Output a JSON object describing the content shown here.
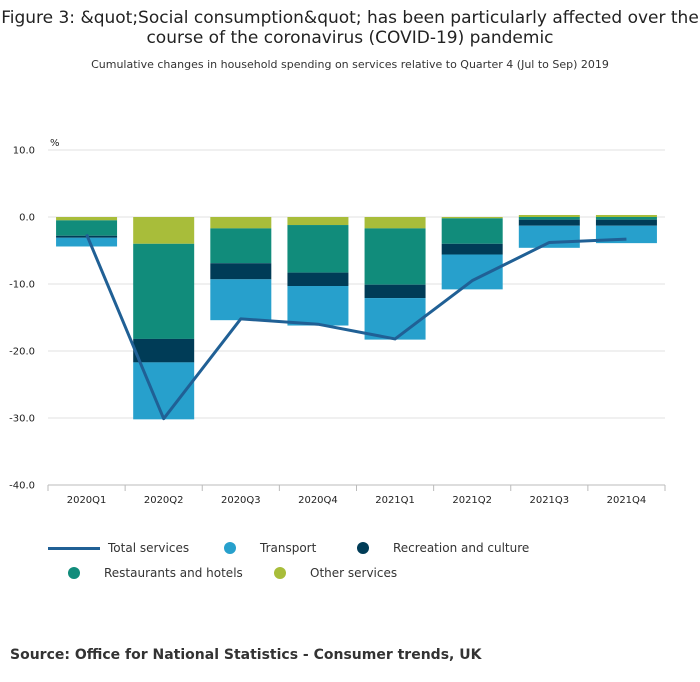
{
  "title": "Figure 3: &quot;Social consumption&quot; has been particularly affected over the course of the coronavirus (COVID-19) pandemic",
  "subtitle": "Cumulative changes in household spending on services relative to Quarter 4 (Jul to Sep) 2019",
  "source": "Source: Office for National Statistics - Consumer trends, UK",
  "colors": {
    "total": "#206095",
    "transport": "#27a0cc",
    "recreation": "#003c57",
    "restaurants": "#118c7b",
    "other": "#a8bd3a"
  },
  "legend": {
    "total": "Total services",
    "transport": "Transport",
    "recreation": "Recreation and culture",
    "restaurants": "Restaurants and hotels",
    "other": "Other services"
  },
  "chart_data": {
    "type": "bar",
    "stacked": true,
    "ylabel": "%",
    "ylim": [
      -40,
      10
    ],
    "yticks": [
      "10.0",
      "0.0",
      "-10.0",
      "-20.0",
      "-30.0",
      "-40.0"
    ],
    "categories": [
      "2020Q1",
      "2020Q2",
      "2020Q3",
      "2020Q4",
      "2021Q1",
      "2021Q2",
      "2021Q3",
      "2021Q4"
    ],
    "series": [
      {
        "name": "Other services",
        "key": "other",
        "values": [
          -0.5,
          -4.0,
          -1.7,
          -1.2,
          -1.7,
          -0.2,
          0.3,
          0.3
        ]
      },
      {
        "name": "Restaurants and hotels",
        "key": "restaurants",
        "values": [
          -2.3,
          -14.2,
          -5.2,
          -7.1,
          -8.4,
          -3.8,
          -0.4,
          -0.4
        ]
      },
      {
        "name": "Recreation and culture",
        "key": "recreation",
        "values": [
          -0.3,
          -3.5,
          -2.4,
          -2.0,
          -2.0,
          -1.6,
          -0.9,
          -0.9
        ]
      },
      {
        "name": "Transport",
        "key": "transport",
        "values": [
          -1.3,
          -8.5,
          -6.1,
          -5.9,
          -6.2,
          -5.2,
          -3.3,
          -2.6
        ]
      },
      {
        "name": "Total services",
        "key": "total",
        "type": "line",
        "values": [
          -2.6,
          -30.1,
          -15.2,
          -16.0,
          -18.2,
          -9.5,
          -3.8,
          -3.3
        ]
      }
    ]
  }
}
